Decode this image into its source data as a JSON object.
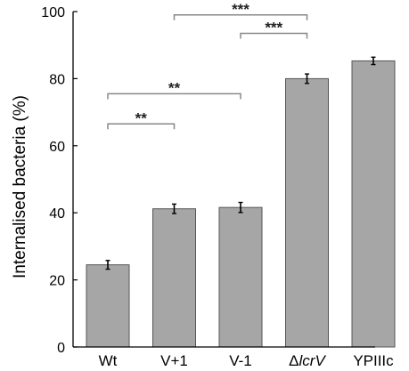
{
  "chart_data": {
    "type": "bar",
    "ylabel": "Internalised bacteria (%)",
    "ylim": [
      0,
      100
    ],
    "yticks": [
      "0",
      "20",
      "40",
      "60",
      "80",
      "100"
    ],
    "categories": [
      {
        "pre": "",
        "italic": "",
        "post": "Wt"
      },
      {
        "pre": "",
        "italic": "",
        "post": "V+1"
      },
      {
        "pre": "",
        "italic": "",
        "post": "V-1"
      },
      {
        "pre": "Δ",
        "italic": "lcrV",
        "post": ""
      },
      {
        "pre": "",
        "italic": "",
        "post": "YPIIIc"
      }
    ],
    "values": [
      24.5,
      41.2,
      41.6,
      80.0,
      85.3
    ],
    "errors": [
      1.3,
      1.4,
      1.5,
      1.4,
      1.1
    ],
    "bar_color": "#a6a6a6",
    "significance": [
      {
        "from": 0,
        "to": 1,
        "y": 66.5,
        "label": "**"
      },
      {
        "from": 0,
        "to": 2,
        "y": 75.5,
        "label": "**"
      },
      {
        "from": 2,
        "to": 3,
        "y": 93.5,
        "label": "***"
      },
      {
        "from": 1,
        "to": 3,
        "y": 99.0,
        "label": "***"
      }
    ]
  }
}
